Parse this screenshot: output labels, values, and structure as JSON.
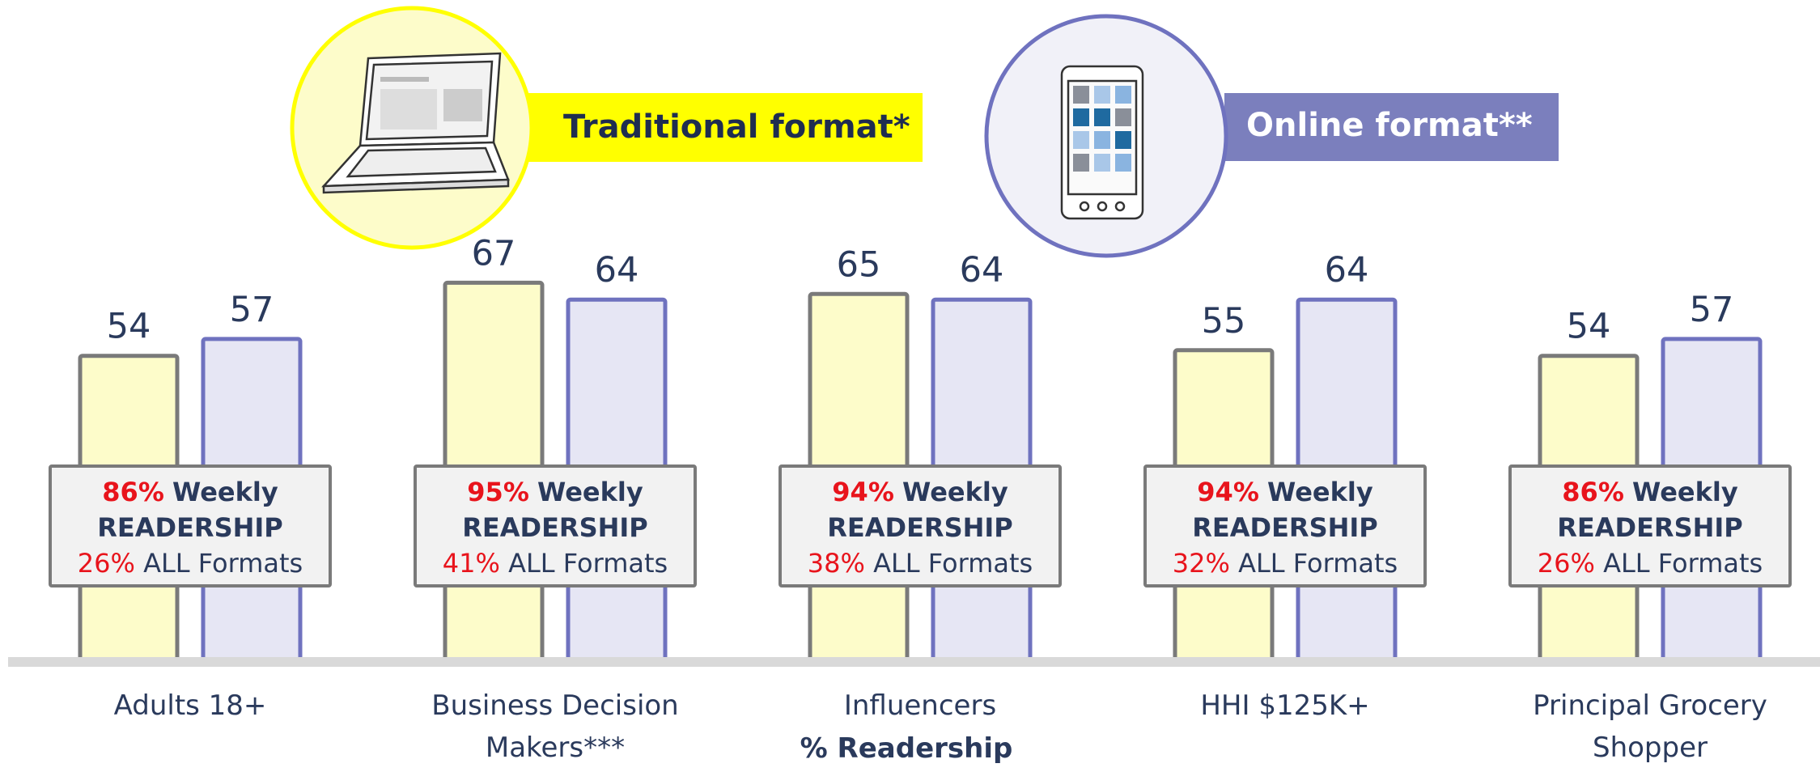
{
  "chart_data": {
    "type": "bar",
    "categories": [
      "Adults 18+",
      "Business Decision Makers***",
      "Influencers",
      "HHI $125K+",
      "Principal Grocery Shopper"
    ],
    "series": [
      {
        "name": "Traditional format*",
        "color": "#fdfcca",
        "values": [
          54,
          67,
          65,
          55,
          54
        ]
      },
      {
        "name": "Online format**",
        "color": "#e6e6f4",
        "values": [
          57,
          64,
          64,
          64,
          57
        ]
      }
    ],
    "x_label": "% Readership",
    "ylim": [
      0,
      100
    ],
    "callouts": {
      "weekly": {
        "label": "Weekly",
        "label2": "READERSHIP",
        "values": [
          86,
          95,
          94,
          94,
          86
        ],
        "value_labels": [
          "86%",
          "95%",
          "94%",
          "94%",
          "86%"
        ]
      },
      "all_formats": {
        "label": "ALL Formats",
        "values": [
          26,
          41,
          38,
          32,
          26
        ],
        "value_labels": [
          "26%",
          "41%",
          "38%",
          "32%",
          "26%"
        ]
      }
    }
  }
}
